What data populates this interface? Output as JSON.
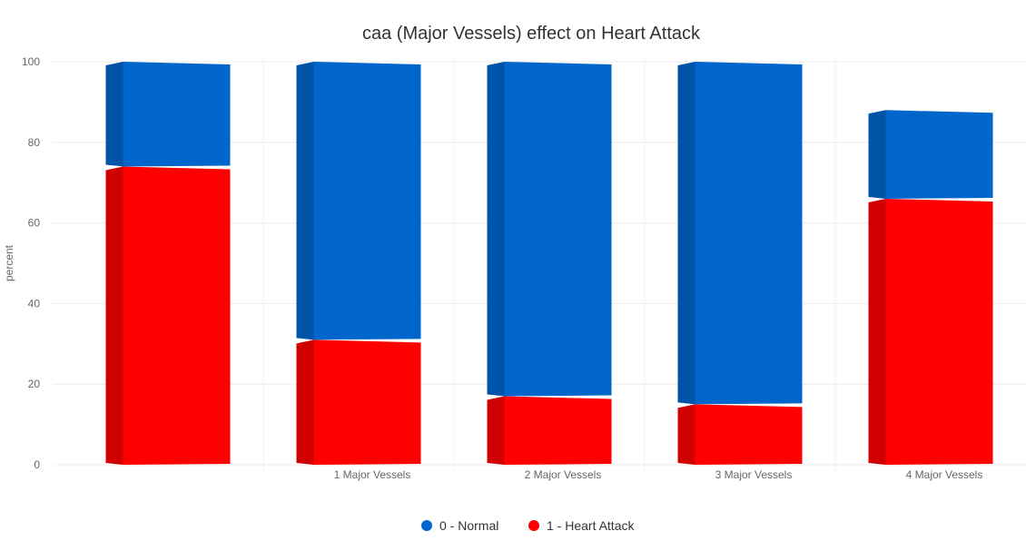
{
  "chart_data": {
    "type": "bar",
    "stacked": true,
    "style": "3d",
    "title": "caa (Major Vessels) effect on Heart Attack",
    "xlabel": "",
    "ylabel": "percent",
    "ylim": [
      0,
      100
    ],
    "yticks": [
      "0",
      "20",
      "40",
      "60",
      "80",
      "100"
    ],
    "categories": [
      "",
      "1 Major Vessels",
      "2 Major Vessels",
      "3 Major Vessels",
      "4 Major Vessels"
    ],
    "series": [
      {
        "name": "1 - Heart Attack",
        "color": "#ff0000",
        "values": [
          74,
          31,
          17,
          15,
          66
        ]
      },
      {
        "name": "0 - Normal",
        "color": "#0066cc",
        "values": [
          26,
          69,
          83,
          85,
          22
        ]
      }
    ],
    "legend": {
      "placement": "bottom-center",
      "order": [
        "0 - Normal",
        "1 - Heart Attack"
      ]
    },
    "grid": true
  }
}
